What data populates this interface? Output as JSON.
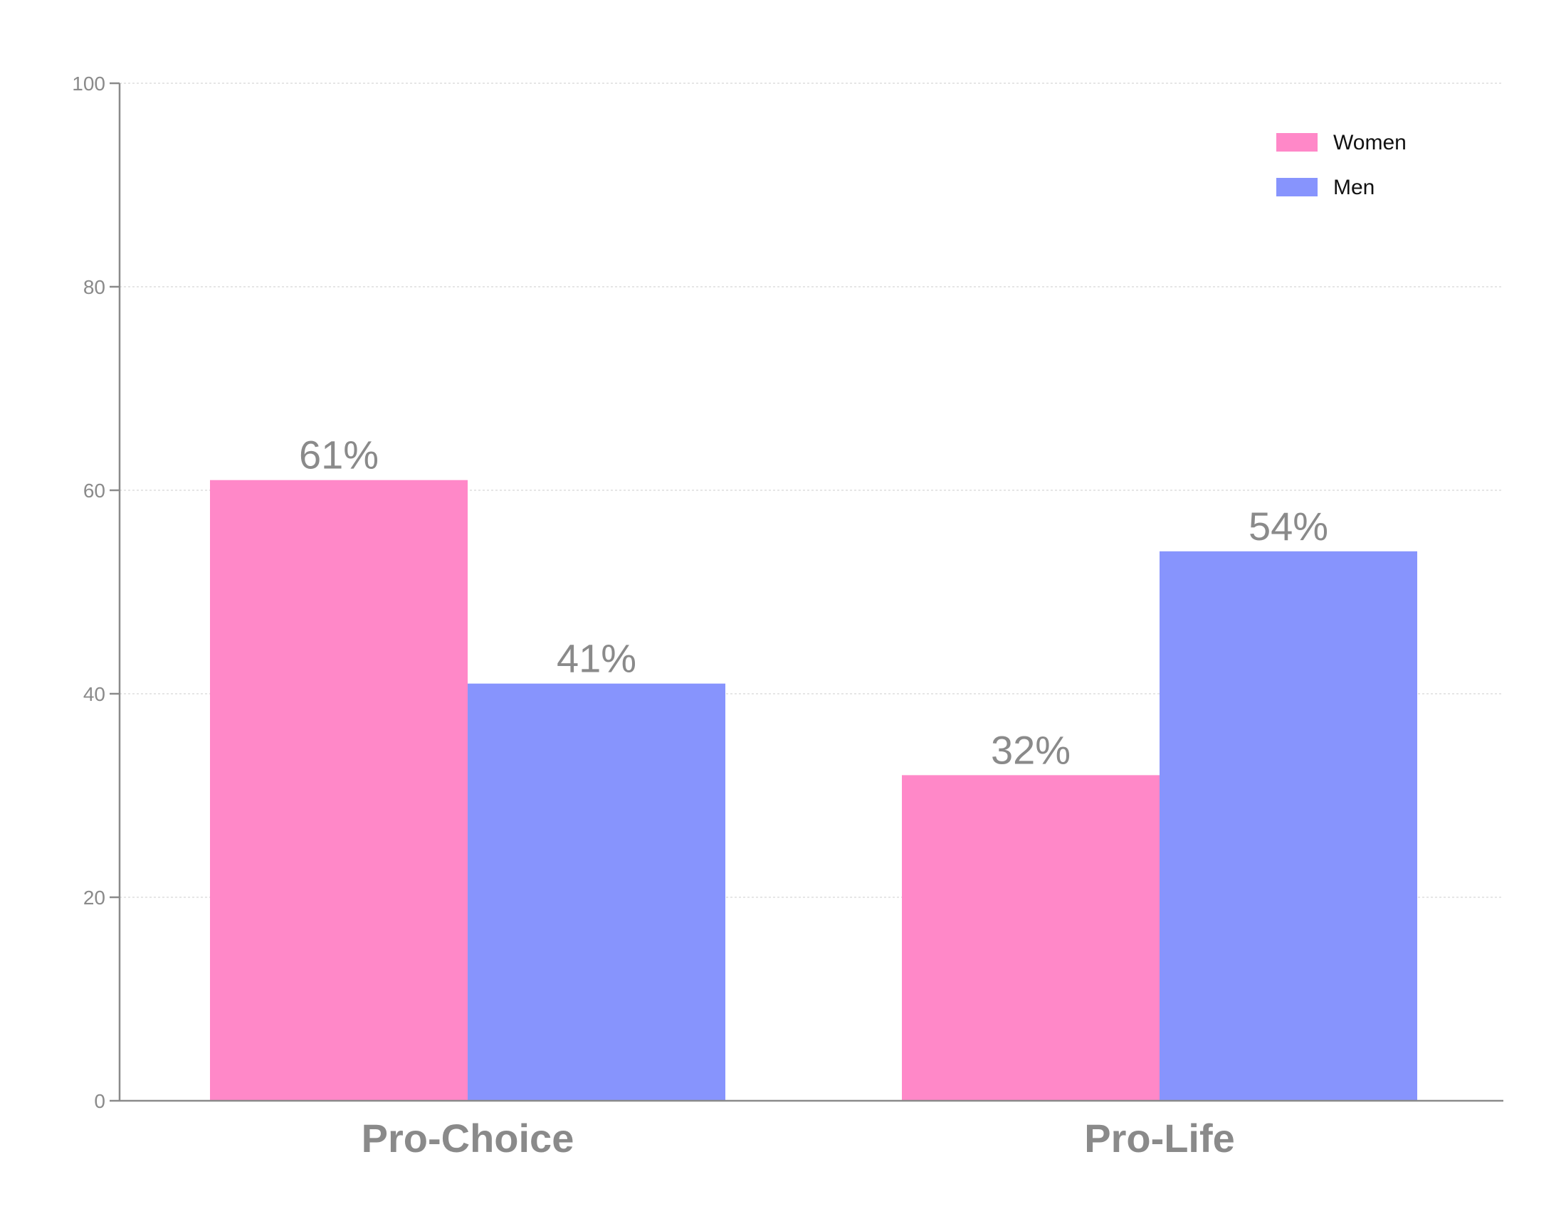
{
  "chart_data": {
    "type": "bar",
    "categories": [
      "Pro-Choice",
      "Pro-Life"
    ],
    "series": [
      {
        "name": "Women",
        "values": [
          61,
          32
        ],
        "labels": [
          "61%",
          "32%"
        ],
        "color": "#ff88c8"
      },
      {
        "name": "Men",
        "values": [
          41,
          54
        ],
        "labels": [
          "41%",
          "54%"
        ],
        "color": "#8794fd"
      }
    ],
    "title": "",
    "xlabel": "",
    "ylabel": "",
    "ylim": [
      0,
      100
    ],
    "yticks": [
      0,
      20,
      40,
      60,
      80,
      100
    ],
    "grid": true,
    "legend_position": "top-right"
  }
}
